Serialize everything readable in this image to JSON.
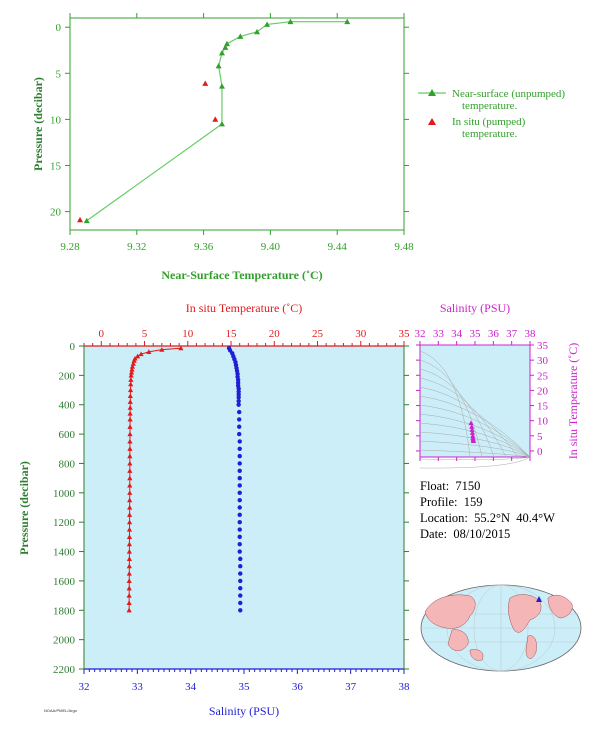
{
  "colors": {
    "green": "#33a02c",
    "green_light": "#66cc66",
    "red": "#e31a1c",
    "blue": "#1f1fd6",
    "magenta": "#cc22cc",
    "axis_green": "#2e7d32",
    "plot_bg": "#cceef8",
    "grid": "#aaaaaa"
  },
  "info": {
    "float": "Float:  7150",
    "profile": "Profile:  159",
    "location": "Location:  55.2°N  40.4°W",
    "date": "Date:  08/10/2015"
  },
  "credit": "NOAA/PMEL/Argo",
  "chart_data": [
    {
      "id": "near-surface",
      "type": "line",
      "xlabel": "Near-Surface Temperature (˚C)",
      "ylabel": "Pressure (decibar)",
      "xlim": [
        9.28,
        9.48
      ],
      "ylim": [
        22,
        -1
      ],
      "xticks": [
        "9.28",
        "9.32",
        "9.36",
        "9.40",
        "9.44",
        "9.48"
      ],
      "yticks": [
        "0",
        "5",
        "10",
        "15",
        "20"
      ],
      "series": [
        {
          "name": "Near-surface (unpumped) temperature.",
          "style": "line-triangle",
          "points": [
            [
              9.446,
              -0.6
            ],
            [
              9.412,
              -0.6
            ],
            [
              9.398,
              -0.3
            ],
            [
              9.392,
              0.5
            ],
            [
              9.382,
              1.0
            ],
            [
              9.374,
              1.8
            ],
            [
              9.373,
              2.2
            ],
            [
              9.371,
              2.8
            ],
            [
              9.369,
              4.2
            ],
            [
              9.371,
              6.4
            ],
            [
              9.371,
              10.5
            ],
            [
              9.29,
              21.0
            ]
          ]
        },
        {
          "name": "In situ (pumped) temperature.",
          "style": "triangle",
          "points": [
            [
              9.361,
              6.1
            ],
            [
              9.367,
              10.0
            ],
            [
              9.286,
              20.9
            ]
          ]
        }
      ]
    },
    {
      "id": "profile",
      "type": "scatter",
      "ylabel": "Pressure (decibar)",
      "ylim": [
        2200,
        0
      ],
      "yticks": [
        "0",
        "200",
        "400",
        "600",
        "800",
        "1000",
        "1200",
        "1400",
        "1600",
        "1800",
        "2000",
        "2200"
      ],
      "top_axis": {
        "label": "In situ Temperature (˚C)",
        "lim": [
          -2,
          35
        ],
        "ticks": [
          "0",
          "5",
          "10",
          "15",
          "20",
          "25",
          "30",
          "35"
        ]
      },
      "bottom_axis": {
        "label": "Salinity (PSU)",
        "lim": [
          32,
          38
        ],
        "ticks": [
          "32",
          "33",
          "34",
          "35",
          "36",
          "37",
          "38"
        ]
      },
      "temperature": [
        [
          9.2,
          15
        ],
        [
          7,
          25
        ],
        [
          5.5,
          40
        ],
        [
          4.6,
          55
        ],
        [
          4.2,
          70
        ],
        [
          3.9,
          85
        ],
        [
          3.8,
          100
        ],
        [
          3.7,
          120
        ],
        [
          3.6,
          140
        ],
        [
          3.55,
          160
        ],
        [
          3.5,
          180
        ],
        [
          3.45,
          200
        ],
        [
          3.42,
          230
        ],
        [
          3.4,
          260
        ],
        [
          3.38,
          300
        ],
        [
          3.36,
          340
        ],
        [
          3.35,
          380
        ],
        [
          3.34,
          420
        ],
        [
          3.33,
          460
        ],
        [
          3.33,
          500
        ],
        [
          3.32,
          550
        ],
        [
          3.32,
          600
        ],
        [
          3.31,
          650
        ],
        [
          3.31,
          700
        ],
        [
          3.3,
          750
        ],
        [
          3.3,
          800
        ],
        [
          3.3,
          850
        ],
        [
          3.3,
          900
        ],
        [
          3.29,
          950
        ],
        [
          3.29,
          1000
        ],
        [
          3.28,
          1050
        ],
        [
          3.28,
          1100
        ],
        [
          3.27,
          1150
        ],
        [
          3.27,
          1200
        ],
        [
          3.26,
          1250
        ],
        [
          3.26,
          1300
        ],
        [
          3.25,
          1350
        ],
        [
          3.25,
          1400
        ],
        [
          3.25,
          1450
        ],
        [
          3.24,
          1500
        ],
        [
          3.24,
          1550
        ],
        [
          3.23,
          1600
        ],
        [
          3.23,
          1650
        ],
        [
          3.22,
          1700
        ],
        [
          3.22,
          1750
        ],
        [
          3.22,
          1800
        ]
      ],
      "salinity": [
        [
          34.72,
          15
        ],
        [
          34.74,
          30
        ],
        [
          34.78,
          50
        ],
        [
          34.8,
          70
        ],
        [
          34.82,
          90
        ],
        [
          34.84,
          110
        ],
        [
          34.85,
          130
        ],
        [
          34.86,
          150
        ],
        [
          34.87,
          170
        ],
        [
          34.88,
          190
        ],
        [
          34.88,
          210
        ],
        [
          34.89,
          230
        ],
        [
          34.89,
          250
        ],
        [
          34.89,
          270
        ],
        [
          34.9,
          290
        ],
        [
          34.9,
          310
        ],
        [
          34.9,
          330
        ],
        [
          34.9,
          350
        ],
        [
          34.9,
          375
        ],
        [
          34.9,
          400
        ],
        [
          34.91,
          450
        ],
        [
          34.91,
          500
        ],
        [
          34.91,
          550
        ],
        [
          34.91,
          600
        ],
        [
          34.92,
          650
        ],
        [
          34.92,
          700
        ],
        [
          34.92,
          750
        ],
        [
          34.92,
          800
        ],
        [
          34.92,
          850
        ],
        [
          34.92,
          900
        ],
        [
          34.92,
          950
        ],
        [
          34.92,
          1000
        ],
        [
          34.92,
          1050
        ],
        [
          34.92,
          1100
        ],
        [
          34.92,
          1150
        ],
        [
          34.92,
          1200
        ],
        [
          34.92,
          1250
        ],
        [
          34.92,
          1300
        ],
        [
          34.92,
          1350
        ],
        [
          34.92,
          1400
        ],
        [
          34.93,
          1450
        ],
        [
          34.93,
          1500
        ],
        [
          34.93,
          1550
        ],
        [
          34.93,
          1600
        ],
        [
          34.93,
          1650
        ],
        [
          34.93,
          1700
        ],
        [
          34.93,
          1750
        ],
        [
          34.93,
          1800
        ]
      ]
    },
    {
      "id": "ts-diagram",
      "type": "scatter",
      "xlabel": "Salinity (PSU)",
      "ylabel": "In situ Temperature (˚C)",
      "xlim": [
        32,
        38
      ],
      "ylim": [
        -2,
        35
      ],
      "xticks": [
        "32",
        "33",
        "34",
        "35",
        "36",
        "37",
        "38"
      ],
      "yticks": [
        "0",
        "5",
        "10",
        "15",
        "20",
        "25",
        "30",
        "35"
      ],
      "points": [
        [
          34.92,
          3.3
        ],
        [
          34.91,
          3.5
        ],
        [
          34.9,
          3.9
        ],
        [
          34.89,
          4.3
        ],
        [
          34.88,
          5.0
        ],
        [
          34.86,
          6.0
        ],
        [
          34.84,
          7.0
        ],
        [
          34.82,
          8.0
        ],
        [
          34.78,
          9.2
        ]
      ]
    }
  ]
}
